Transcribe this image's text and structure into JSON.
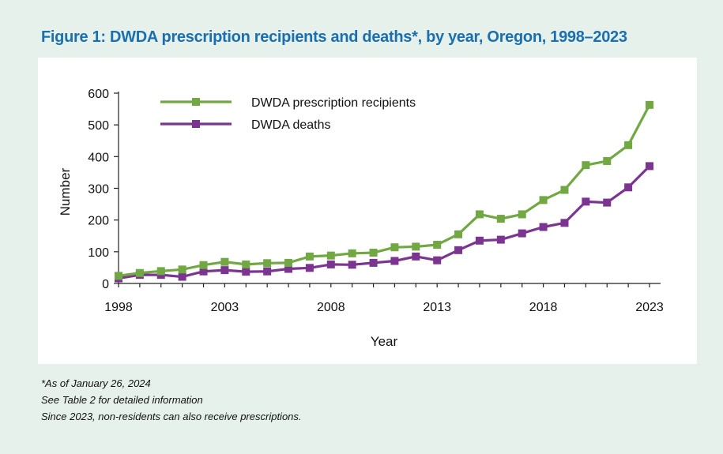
{
  "chart_title": "Figure 1: DWDA prescription recipients and deaths*, by year, Oregon, 1998–2023",
  "notes": [
    "*As of January 26, 2024",
    " See Table 2 for detailed information",
    "Since 2023, non-residents can also receive prescriptions."
  ],
  "chart_data": {
    "type": "line",
    "title": "Figure 1: DWDA prescription recipients and deaths*, by year, Oregon, 1998–2023",
    "xlabel": "Year",
    "ylabel": "Number",
    "x": [
      1998,
      1999,
      2000,
      2001,
      2002,
      2003,
      2004,
      2005,
      2006,
      2007,
      2008,
      2009,
      2010,
      2011,
      2012,
      2013,
      2014,
      2015,
      2016,
      2017,
      2018,
      2019,
      2020,
      2021,
      2022,
      2023
    ],
    "x_ticks": [
      1998,
      2003,
      2008,
      2013,
      2018,
      2023
    ],
    "ylim": [
      0,
      600
    ],
    "y_ticks": [
      0,
      100,
      200,
      300,
      400,
      500,
      600
    ],
    "grid": false,
    "legend_position": "top-left",
    "series": [
      {
        "name": "DWDA prescription recipients",
        "color": "#72a843",
        "values": [
          24,
          33,
          39,
          44,
          58,
          68,
          60,
          64,
          65,
          85,
          88,
          95,
          97,
          114,
          116,
          122,
          155,
          218,
          204,
          218,
          263,
          295,
          373,
          386,
          436,
          563
        ]
      },
      {
        "name": "DWDA deaths",
        "color": "#7b3590",
        "values": [
          16,
          27,
          27,
          21,
          38,
          42,
          37,
          38,
          46,
          49,
          60,
          59,
          65,
          71,
          85,
          73,
          105,
          135,
          138,
          158,
          178,
          191,
          258,
          255,
          303,
          370
        ]
      }
    ]
  }
}
